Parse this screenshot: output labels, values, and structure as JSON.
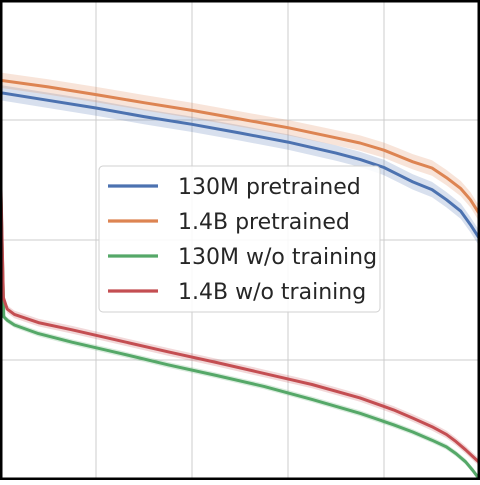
{
  "chart_data": {
    "type": "line",
    "title": "",
    "xlabel": "",
    "ylabel": "",
    "xlim": [
      0,
      100
    ],
    "ylim": [
      0,
      100
    ],
    "grid": true,
    "legend_position": "center-left",
    "series": [
      {
        "name": "130M pretrained",
        "color": "#4c72b0",
        "x": [
          0,
          10,
          20,
          30,
          40,
          50,
          60,
          70,
          75,
          80,
          83,
          86,
          90,
          93,
          96,
          98,
          100
        ],
        "y": [
          80.7,
          79.1,
          77.5,
          75.7,
          74.1,
          72.3,
          70.4,
          68.1,
          66.8,
          65.1,
          63.6,
          62.1,
          60.5,
          58.4,
          56.0,
          53.2,
          50.1
        ],
        "band": 1.6
      },
      {
        "name": "1.4B pretrained",
        "color": "#dd8452",
        "x": [
          0,
          10,
          20,
          30,
          40,
          50,
          60,
          70,
          75,
          80,
          83,
          86,
          90,
          93,
          96,
          98,
          100
        ],
        "y": [
          83.3,
          81.9,
          80.3,
          78.6,
          77.0,
          75.2,
          73.4,
          71.3,
          70.2,
          68.7,
          67.5,
          66.3,
          65.0,
          63.0,
          60.7,
          58.4,
          55.2
        ],
        "band": 1.6
      },
      {
        "name": "130M w/o training",
        "color": "#55a868",
        "x": [
          0,
          0.8,
          1.5,
          3,
          8,
          15,
          25,
          35,
          45,
          55,
          65,
          75,
          82,
          86,
          90,
          93,
          95,
          97,
          98.5,
          100
        ],
        "y": [
          68,
          34,
          33.3,
          32.3,
          30.5,
          28.7,
          26.4,
          24.0,
          21.8,
          19.5,
          16.8,
          13.9,
          11.5,
          10.0,
          8.3,
          6.9,
          5.5,
          3.8,
          2.0,
          0
        ],
        "band": 0.6
      },
      {
        "name": "1.4B w/o training",
        "color": "#c44e52",
        "x": [
          0,
          0.7,
          1.5,
          3,
          8,
          15,
          25,
          35,
          45,
          55,
          65,
          75,
          82,
          86,
          90,
          93,
          95,
          97,
          98.5,
          100
        ],
        "y": [
          70,
          38,
          35.6,
          34.5,
          32.8,
          31.3,
          29.0,
          26.7,
          24.5,
          22.2,
          19.9,
          17.1,
          14.6,
          12.9,
          11.1,
          9.5,
          8.0,
          6.3,
          4.9,
          3.5
        ],
        "band": 0.8
      }
    ]
  }
}
